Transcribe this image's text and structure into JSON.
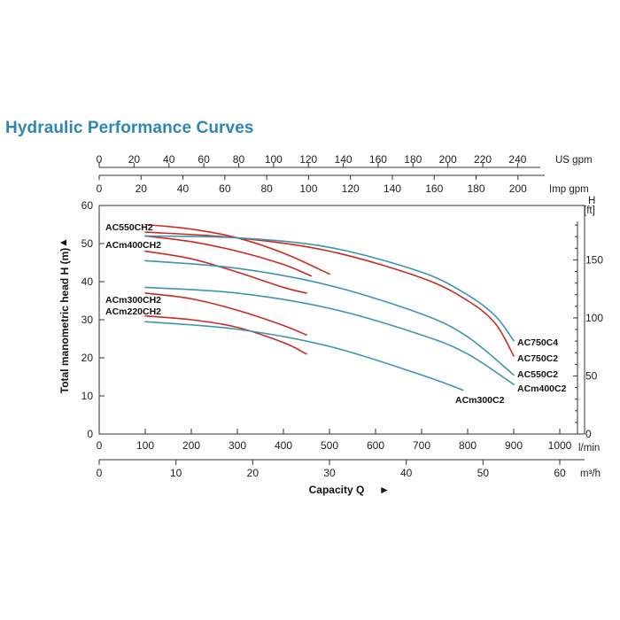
{
  "title": "Hydraulic Performance Curves",
  "chart_data": {
    "type": "line",
    "title": "Hydraulic Performance Curves",
    "xlabel": "Capacity Q",
    "ylabel": "Total manometric head H (m)",
    "xlim": [
      0,
      1000
    ],
    "ylim": [
      0,
      60
    ],
    "x_unit": "l/min",
    "y_unit": "m",
    "grid": false,
    "x_ticks": [
      "0",
      "100",
      "200",
      "300",
      "400",
      "500",
      "600",
      "700",
      "800",
      "900",
      "1000"
    ],
    "y_ticks": [
      "0",
      "10",
      "20",
      "30",
      "40",
      "50",
      "60"
    ],
    "secondary_axes": {
      "m3h": {
        "unit": "m³/h",
        "ticks": [
          "0",
          "10",
          "20",
          "30",
          "40",
          "50",
          "60"
        ]
      },
      "us_gpm": {
        "unit": "US gpm",
        "ticks": [
          "0",
          "20",
          "40",
          "60",
          "80",
          "100",
          "120",
          "140",
          "160",
          "180",
          "200",
          "220",
          "240"
        ]
      },
      "imp_gpm": {
        "unit": "Imp gpm",
        "ticks": [
          "0",
          "20",
          "40",
          "60",
          "80",
          "100",
          "120",
          "140",
          "160",
          "180",
          "200"
        ]
      },
      "ft": {
        "unit_top": "H",
        "unit_bottom": "[ft]",
        "ticks": [
          "0",
          "50",
          "100",
          "150"
        ]
      }
    },
    "series": [
      {
        "name": "AC550CH2",
        "color": "#cc2a1f",
        "label_side": "left",
        "x": [
          100,
          200,
          300,
          400,
          500
        ],
        "y": [
          55,
          53.8,
          51.5,
          47.5,
          42
        ]
      },
      {
        "name": "ACm400CH2",
        "color": "#cc2a1f",
        "label_side": "left",
        "x": [
          100,
          200,
          300,
          400,
          460
        ],
        "y": [
          52,
          50.5,
          48,
          44.5,
          41.5
        ]
      },
      {
        "name": "",
        "color": "#cc2a1f",
        "label_side": "none",
        "x": [
          100,
          200,
          300,
          400,
          450
        ],
        "y": [
          48,
          46,
          42.5,
          38.5,
          37
        ]
      },
      {
        "name": "ACm300CH2",
        "color": "#cc2a1f",
        "label_side": "left",
        "x": [
          100,
          200,
          300,
          400,
          450
        ],
        "y": [
          37,
          35.5,
          32.5,
          28.5,
          26
        ]
      },
      {
        "name": "ACm220CH2",
        "color": "#cc2a1f",
        "label_side": "left",
        "x": [
          100,
          200,
          300,
          400,
          450
        ],
        "y": [
          31,
          30,
          28,
          24,
          21
        ]
      },
      {
        "name": "AC750C4",
        "color": "#cc2a1f",
        "label_side": "right",
        "x": [
          100,
          300,
          500,
          700,
          800,
          860,
          900
        ],
        "y": [
          53,
          51.5,
          48,
          41,
          35,
          29,
          20.5
        ]
      },
      {
        "name": "AC750C2",
        "color": "#3c94b3",
        "label_side": "right",
        "x": [
          100,
          300,
          500,
          700,
          800,
          860,
          900
        ],
        "y": [
          52,
          51.5,
          49,
          42.5,
          36.5,
          31,
          24.5
        ]
      },
      {
        "name": "AC550C2",
        "color": "#3c94b3",
        "label_side": "right",
        "x": [
          100,
          300,
          500,
          700,
          800,
          900
        ],
        "y": [
          45.5,
          43.5,
          39,
          31.5,
          25.5,
          15.5
        ]
      },
      {
        "name": "ACm400C2",
        "color": "#3c94b3",
        "label_side": "right",
        "x": [
          100,
          300,
          500,
          700,
          800,
          900
        ],
        "y": [
          38.5,
          37,
          33,
          26,
          21,
          13
        ]
      },
      {
        "name": "ACm300C2",
        "color": "#3c94b3",
        "label_side": "right",
        "x": [
          100,
          300,
          500,
          700,
          790
        ],
        "y": [
          29.5,
          27.5,
          23,
          15.5,
          11.5
        ]
      }
    ]
  }
}
